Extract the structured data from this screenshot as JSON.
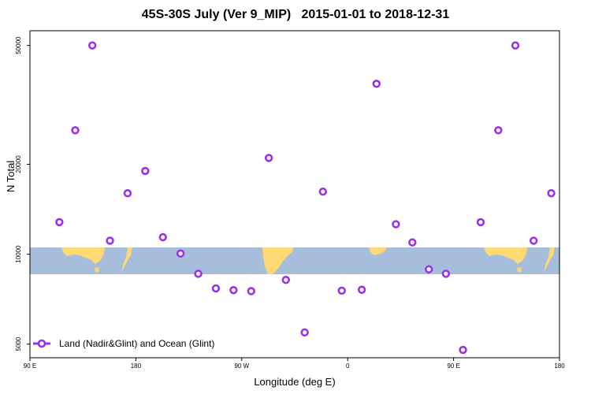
{
  "chart_data": {
    "type": "scatter",
    "title": "45S-30S July (Ver 9_MIP)   2015-01-01 to 2018-12-31",
    "xlabel": "Longitude (deg E)",
    "ylabel": "N Total",
    "x_ticks": [
      {
        "value": 90,
        "label": "90 E"
      },
      {
        "value": 180,
        "label": "180"
      },
      {
        "value": 270,
        "label": "90 W"
      },
      {
        "value": 360,
        "label": "0"
      },
      {
        "value": 450,
        "label": "90 E"
      },
      {
        "value": 540,
        "label": "180"
      }
    ],
    "xlim": [
      90,
      540
    ],
    "y_scale": "log",
    "ylim": [
      4500,
      56000
    ],
    "y_ticks": [
      {
        "value": 5000,
        "label": "5000"
      },
      {
        "value": 10000,
        "label": "10000"
      },
      {
        "value": 20000,
        "label": "20000"
      },
      {
        "value": 50000,
        "label": "50000"
      }
    ],
    "grid": false,
    "legend_position": "bottom-left",
    "series": [
      {
        "name": "Land (Nadir&Glint) and Ocean (Glint)",
        "color": "#9b30e8",
        "x": [
          115,
          128.5,
          143,
          158,
          173,
          188,
          203,
          218,
          233,
          248,
          263,
          278,
          293,
          307.5,
          323.5,
          339,
          355,
          372,
          384.5,
          401,
          415,
          429,
          443.5,
          458,
          473,
          488,
          502.5,
          518,
          533
        ],
        "y": [
          12800,
          26000,
          50000,
          11100,
          16000,
          19000,
          11400,
          10050,
          8600,
          7680,
          7580,
          7520,
          21000,
          8200,
          5470,
          16200,
          7550,
          7600,
          37200,
          12600,
          10950,
          8900,
          8600,
          4780,
          12800,
          26000,
          50000,
          11100,
          16000
        ]
      }
    ],
    "map_strip": {
      "ocean_color": "#a6bddb",
      "land_color": "#fed976"
    }
  }
}
